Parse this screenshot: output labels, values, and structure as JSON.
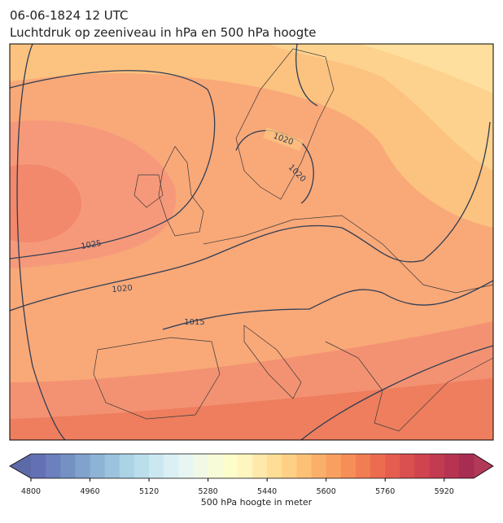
{
  "header": {
    "title_line1": "06-06-1824 12 UTC",
    "title_line2": "Luchtdruk op zeeniveau in hPa en 500 hPa hoogte"
  },
  "map": {
    "isobar_labels": [
      "1020",
      "1020",
      "1025",
      "1020",
      "1015"
    ]
  },
  "colorbar": {
    "label": "500 hPa hoogte in meter",
    "lim": [
      4800,
      6000
    ],
    "ticks": [
      4800,
      4960,
      5120,
      5280,
      5440,
      5600,
      5760,
      5920
    ],
    "under_color": "#5d6aa8",
    "over_color": "#b23a56",
    "colors": [
      "#6470b4",
      "#6b80bc",
      "#7591c4",
      "#80a2cc",
      "#8db3d5",
      "#9cc3dd",
      "#abd2e5",
      "#bbdeec",
      "#cbe8f1",
      "#dbf0f5",
      "#e8f6f3",
      "#f1f9e6",
      "#f8fbd8",
      "#fdfccb",
      "#fff5bf",
      "#fee9aa",
      "#fedd96",
      "#fdd085",
      "#fcc177",
      "#fbb06a",
      "#f9a060",
      "#f68e58",
      "#f17d53",
      "#ec6c50",
      "#e45d4f",
      "#da4f4f",
      "#cf444f",
      "#c33b50",
      "#b63451",
      "#a82d52"
    ]
  }
}
